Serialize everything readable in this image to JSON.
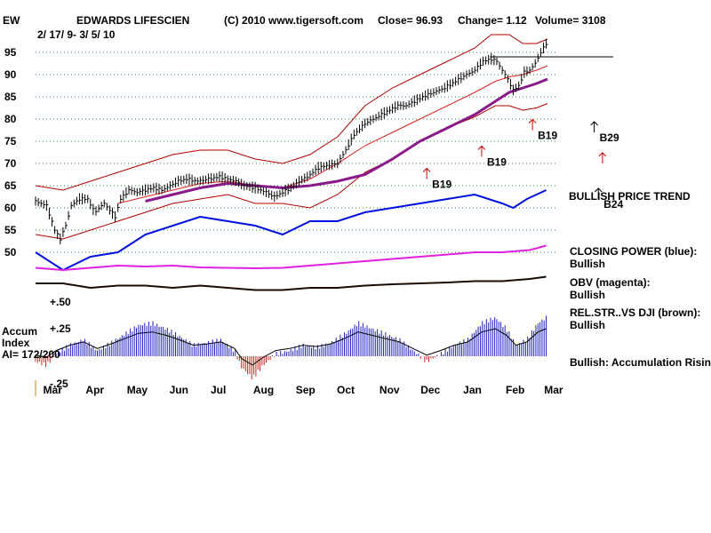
{
  "header": {
    "ticker": "EW",
    "company": "EDWARDS LIFESCIEN",
    "copyright": "(C) 2010 www.tigersoft.com",
    "close": "Close=  96.93",
    "change": "Change= 1.12",
    "volume": "Volume=  3108",
    "date_range": "2/ 17/ 9- 3/ 5/ 10"
  },
  "indicators": {
    "bullish_price_trend": "BULLISH PRICE TREND",
    "closing_power_title": "CLOSING POWER (blue):",
    "closing_power_status": "Bullish",
    "obv_title": "OBV (magenta):",
    "obv_status": "Bullish",
    "relstr_title": "REL.STR..VS DJI (brown):",
    "relstr_status": "Bullish",
    "accum_summary": "Bullish: Accumulation Rising"
  },
  "accum_panel": {
    "title_line1": "Accum",
    "title_line2": "Index",
    "ai_value": "AI= 172/200",
    "tick_p50": "+.50",
    "tick_p25": "+.25",
    "tick_m25": "-.25"
  },
  "signals": [
    {
      "label": "B19",
      "day": 285,
      "price": 66.5,
      "color": "#cc0000"
    },
    {
      "label": "B19",
      "day": 325,
      "price": 71.5,
      "color": "#cc0000"
    },
    {
      "label": "B19",
      "day": 362,
      "price": 77.5,
      "color": "#cc0000"
    },
    {
      "label": "B29",
      "day": 407,
      "price": 77.0,
      "color": "#000000"
    },
    {
      "label": "",
      "day": 413,
      "price": 70.0,
      "color": "#cc0000"
    },
    {
      "label": "B24",
      "day": 410,
      "price": 62.0,
      "color": "#000000"
    }
  ],
  "chart_data": {
    "type": "line",
    "title": "EDWARDS LIFESCIEN",
    "y_ticks": [
      95,
      90,
      85,
      80,
      75,
      70,
      65,
      60,
      55,
      50
    ],
    "ylim": [
      46,
      100
    ],
    "x_month_labels": [
      "Mar",
      "Apr",
      "May",
      "Jun",
      "Jul",
      "Aug",
      "Sep",
      "Oct",
      "Nov",
      "Dec",
      "Jan",
      "Feb",
      "Mar"
    ],
    "x_month_days": [
      12,
      43,
      73,
      104,
      134,
      165,
      196,
      226,
      257,
      287,
      318,
      349,
      377
    ],
    "xlim": [
      0,
      382
    ],
    "grid": true,
    "price_close": [
      [
        0,
        61.5
      ],
      [
        8,
        60.5
      ],
      [
        14,
        55
      ],
      [
        18,
        53
      ],
      [
        22,
        56
      ],
      [
        26,
        60.5
      ],
      [
        32,
        62
      ],
      [
        38,
        62
      ],
      [
        43,
        59
      ],
      [
        50,
        61
      ],
      [
        58,
        58
      ],
      [
        62,
        62
      ],
      [
        68,
        64
      ],
      [
        74,
        63.5
      ],
      [
        80,
        64
      ],
      [
        86,
        64.5
      ],
      [
        92,
        64
      ],
      [
        98,
        65
      ],
      [
        104,
        66
      ],
      [
        110,
        66.5
      ],
      [
        118,
        66
      ],
      [
        126,
        66.5
      ],
      [
        134,
        67
      ],
      [
        140,
        66.5
      ],
      [
        146,
        66
      ],
      [
        152,
        65
      ],
      [
        160,
        64.5
      ],
      [
        168,
        63.5
      ],
      [
        174,
        62.5
      ],
      [
        180,
        63.5
      ],
      [
        186,
        64.5
      ],
      [
        192,
        66
      ],
      [
        198,
        67
      ],
      [
        206,
        69
      ],
      [
        212,
        69.5
      ],
      [
        220,
        70
      ],
      [
        226,
        73
      ],
      [
        232,
        76.5
      ],
      [
        240,
        79
      ],
      [
        246,
        80
      ],
      [
        252,
        81
      ],
      [
        258,
        82
      ],
      [
        264,
        83
      ],
      [
        270,
        83
      ],
      [
        276,
        84
      ],
      [
        282,
        85
      ],
      [
        290,
        86
      ],
      [
        298,
        87
      ],
      [
        306,
        88.5
      ],
      [
        314,
        90
      ],
      [
        320,
        91
      ],
      [
        326,
        93
      ],
      [
        332,
        93.5
      ],
      [
        336,
        93
      ],
      [
        340,
        91
      ],
      [
        344,
        89
      ],
      [
        348,
        86.5
      ],
      [
        352,
        87.5
      ],
      [
        356,
        90.5
      ],
      [
        360,
        91
      ],
      [
        364,
        92.5
      ],
      [
        368,
        95
      ],
      [
        370,
        96
      ],
      [
        372,
        96.93
      ]
    ],
    "upper_band": [
      [
        0,
        65
      ],
      [
        20,
        64
      ],
      [
        40,
        66
      ],
      [
        60,
        68
      ],
      [
        80,
        70
      ],
      [
        100,
        72
      ],
      [
        120,
        73
      ],
      [
        140,
        73
      ],
      [
        160,
        71
      ],
      [
        180,
        70
      ],
      [
        200,
        72
      ],
      [
        220,
        76
      ],
      [
        240,
        83
      ],
      [
        260,
        87
      ],
      [
        280,
        90
      ],
      [
        300,
        93
      ],
      [
        320,
        96
      ],
      [
        332,
        99
      ],
      [
        345,
        99
      ],
      [
        355,
        97
      ],
      [
        365,
        97
      ],
      [
        373,
        98
      ]
    ],
    "lower_band": [
      [
        0,
        54
      ],
      [
        20,
        53
      ],
      [
        40,
        55
      ],
      [
        60,
        57
      ],
      [
        80,
        59
      ],
      [
        100,
        61
      ],
      [
        120,
        62
      ],
      [
        140,
        63
      ],
      [
        160,
        61
      ],
      [
        180,
        61
      ],
      [
        200,
        60
      ],
      [
        220,
        63
      ],
      [
        240,
        68
      ],
      [
        260,
        71
      ],
      [
        280,
        75
      ],
      [
        300,
        78
      ],
      [
        320,
        80.5
      ],
      [
        335,
        83
      ],
      [
        345,
        83
      ],
      [
        355,
        82
      ],
      [
        365,
        82.5
      ],
      [
        373,
        83.5
      ]
    ],
    "ma_red": [
      [
        60,
        61
      ],
      [
        80,
        62.5
      ],
      [
        100,
        64
      ],
      [
        120,
        65.5
      ],
      [
        140,
        66
      ],
      [
        160,
        65
      ],
      [
        180,
        64.5
      ],
      [
        200,
        66.5
      ],
      [
        220,
        70
      ],
      [
        240,
        74
      ],
      [
        260,
        77
      ],
      [
        280,
        80
      ],
      [
        300,
        83
      ],
      [
        320,
        86
      ],
      [
        335,
        88.5
      ],
      [
        345,
        89.5
      ],
      [
        355,
        90
      ],
      [
        365,
        91
      ],
      [
        373,
        92
      ]
    ],
    "ma_purple": [
      [
        80,
        61.5
      ],
      [
        100,
        63
      ],
      [
        120,
        64.5
      ],
      [
        140,
        65.5
      ],
      [
        160,
        65
      ],
      [
        180,
        64.5
      ],
      [
        200,
        65
      ],
      [
        220,
        66
      ],
      [
        240,
        67.5
      ],
      [
        260,
        71
      ],
      [
        280,
        75
      ],
      [
        300,
        78
      ],
      [
        320,
        81
      ],
      [
        335,
        84
      ],
      [
        345,
        86
      ],
      [
        355,
        87
      ],
      [
        365,
        88
      ],
      [
        373,
        89
      ]
    ],
    "resistance_line": {
      "price": 94,
      "day_start": 331,
      "day_end": 404
    },
    "closing_power": [
      [
        0,
        50
      ],
      [
        20,
        46
      ],
      [
        40,
        49
      ],
      [
        60,
        50
      ],
      [
        80,
        54
      ],
      [
        100,
        56
      ],
      [
        120,
        58
      ],
      [
        140,
        57
      ],
      [
        160,
        56
      ],
      [
        180,
        54
      ],
      [
        200,
        57
      ],
      [
        220,
        57
      ],
      [
        240,
        59
      ],
      [
        260,
        60
      ],
      [
        280,
        61
      ],
      [
        300,
        62
      ],
      [
        320,
        63
      ],
      [
        340,
        61
      ],
      [
        348,
        60
      ],
      [
        358,
        62
      ],
      [
        372,
        64
      ]
    ],
    "obv": [
      [
        0,
        46.5
      ],
      [
        20,
        46
      ],
      [
        40,
        46.5
      ],
      [
        60,
        47
      ],
      [
        80,
        46.8
      ],
      [
        100,
        47
      ],
      [
        120,
        46.6
      ],
      [
        140,
        46.5
      ],
      [
        160,
        46.4
      ],
      [
        180,
        46.5
      ],
      [
        200,
        47
      ],
      [
        220,
        47.5
      ],
      [
        240,
        48
      ],
      [
        260,
        48.5
      ],
      [
        280,
        49
      ],
      [
        300,
        49.5
      ],
      [
        320,
        50
      ],
      [
        340,
        50
      ],
      [
        360,
        50.5
      ],
      [
        372,
        51.5
      ]
    ],
    "rel_str": [
      [
        0,
        43
      ],
      [
        20,
        43
      ],
      [
        40,
        42
      ],
      [
        60,
        42.5
      ],
      [
        80,
        42.5
      ],
      [
        100,
        42
      ],
      [
        120,
        42.5
      ],
      [
        140,
        42
      ],
      [
        160,
        41.5
      ],
      [
        180,
        41.5
      ],
      [
        200,
        42
      ],
      [
        220,
        42
      ],
      [
        240,
        42.5
      ],
      [
        260,
        42.8
      ],
      [
        280,
        43
      ],
      [
        300,
        43.2
      ],
      [
        320,
        43.5
      ],
      [
        340,
        43.5
      ],
      [
        360,
        44
      ],
      [
        372,
        44.5
      ]
    ],
    "accum_index": [
      [
        0,
        -0.05
      ],
      [
        8,
        -0.08
      ],
      [
        15,
        0.02
      ],
      [
        25,
        0.1
      ],
      [
        35,
        0.15
      ],
      [
        45,
        0.05
      ],
      [
        55,
        0.12
      ],
      [
        65,
        0.2
      ],
      [
        75,
        0.28
      ],
      [
        85,
        0.3
      ],
      [
        95,
        0.25
      ],
      [
        105,
        0.18
      ],
      [
        115,
        0.1
      ],
      [
        125,
        0.12
      ],
      [
        135,
        0.15
      ],
      [
        145,
        0.05
      ],
      [
        150,
        -0.1
      ],
      [
        158,
        -0.2
      ],
      [
        166,
        -0.08
      ],
      [
        175,
        0.02
      ],
      [
        185,
        0.05
      ],
      [
        195,
        0.1
      ],
      [
        205,
        0.08
      ],
      [
        215,
        0.12
      ],
      [
        225,
        0.2
      ],
      [
        235,
        0.3
      ],
      [
        245,
        0.25
      ],
      [
        255,
        0.2
      ],
      [
        265,
        0.15
      ],
      [
        275,
        0.05
      ],
      [
        285,
        -0.05
      ],
      [
        295,
        0.02
      ],
      [
        305,
        0.1
      ],
      [
        315,
        0.15
      ],
      [
        325,
        0.3
      ],
      [
        335,
        0.35
      ],
      [
        343,
        0.25
      ],
      [
        350,
        0.1
      ],
      [
        358,
        0.15
      ],
      [
        366,
        0.3
      ],
      [
        372,
        0.35
      ]
    ]
  }
}
